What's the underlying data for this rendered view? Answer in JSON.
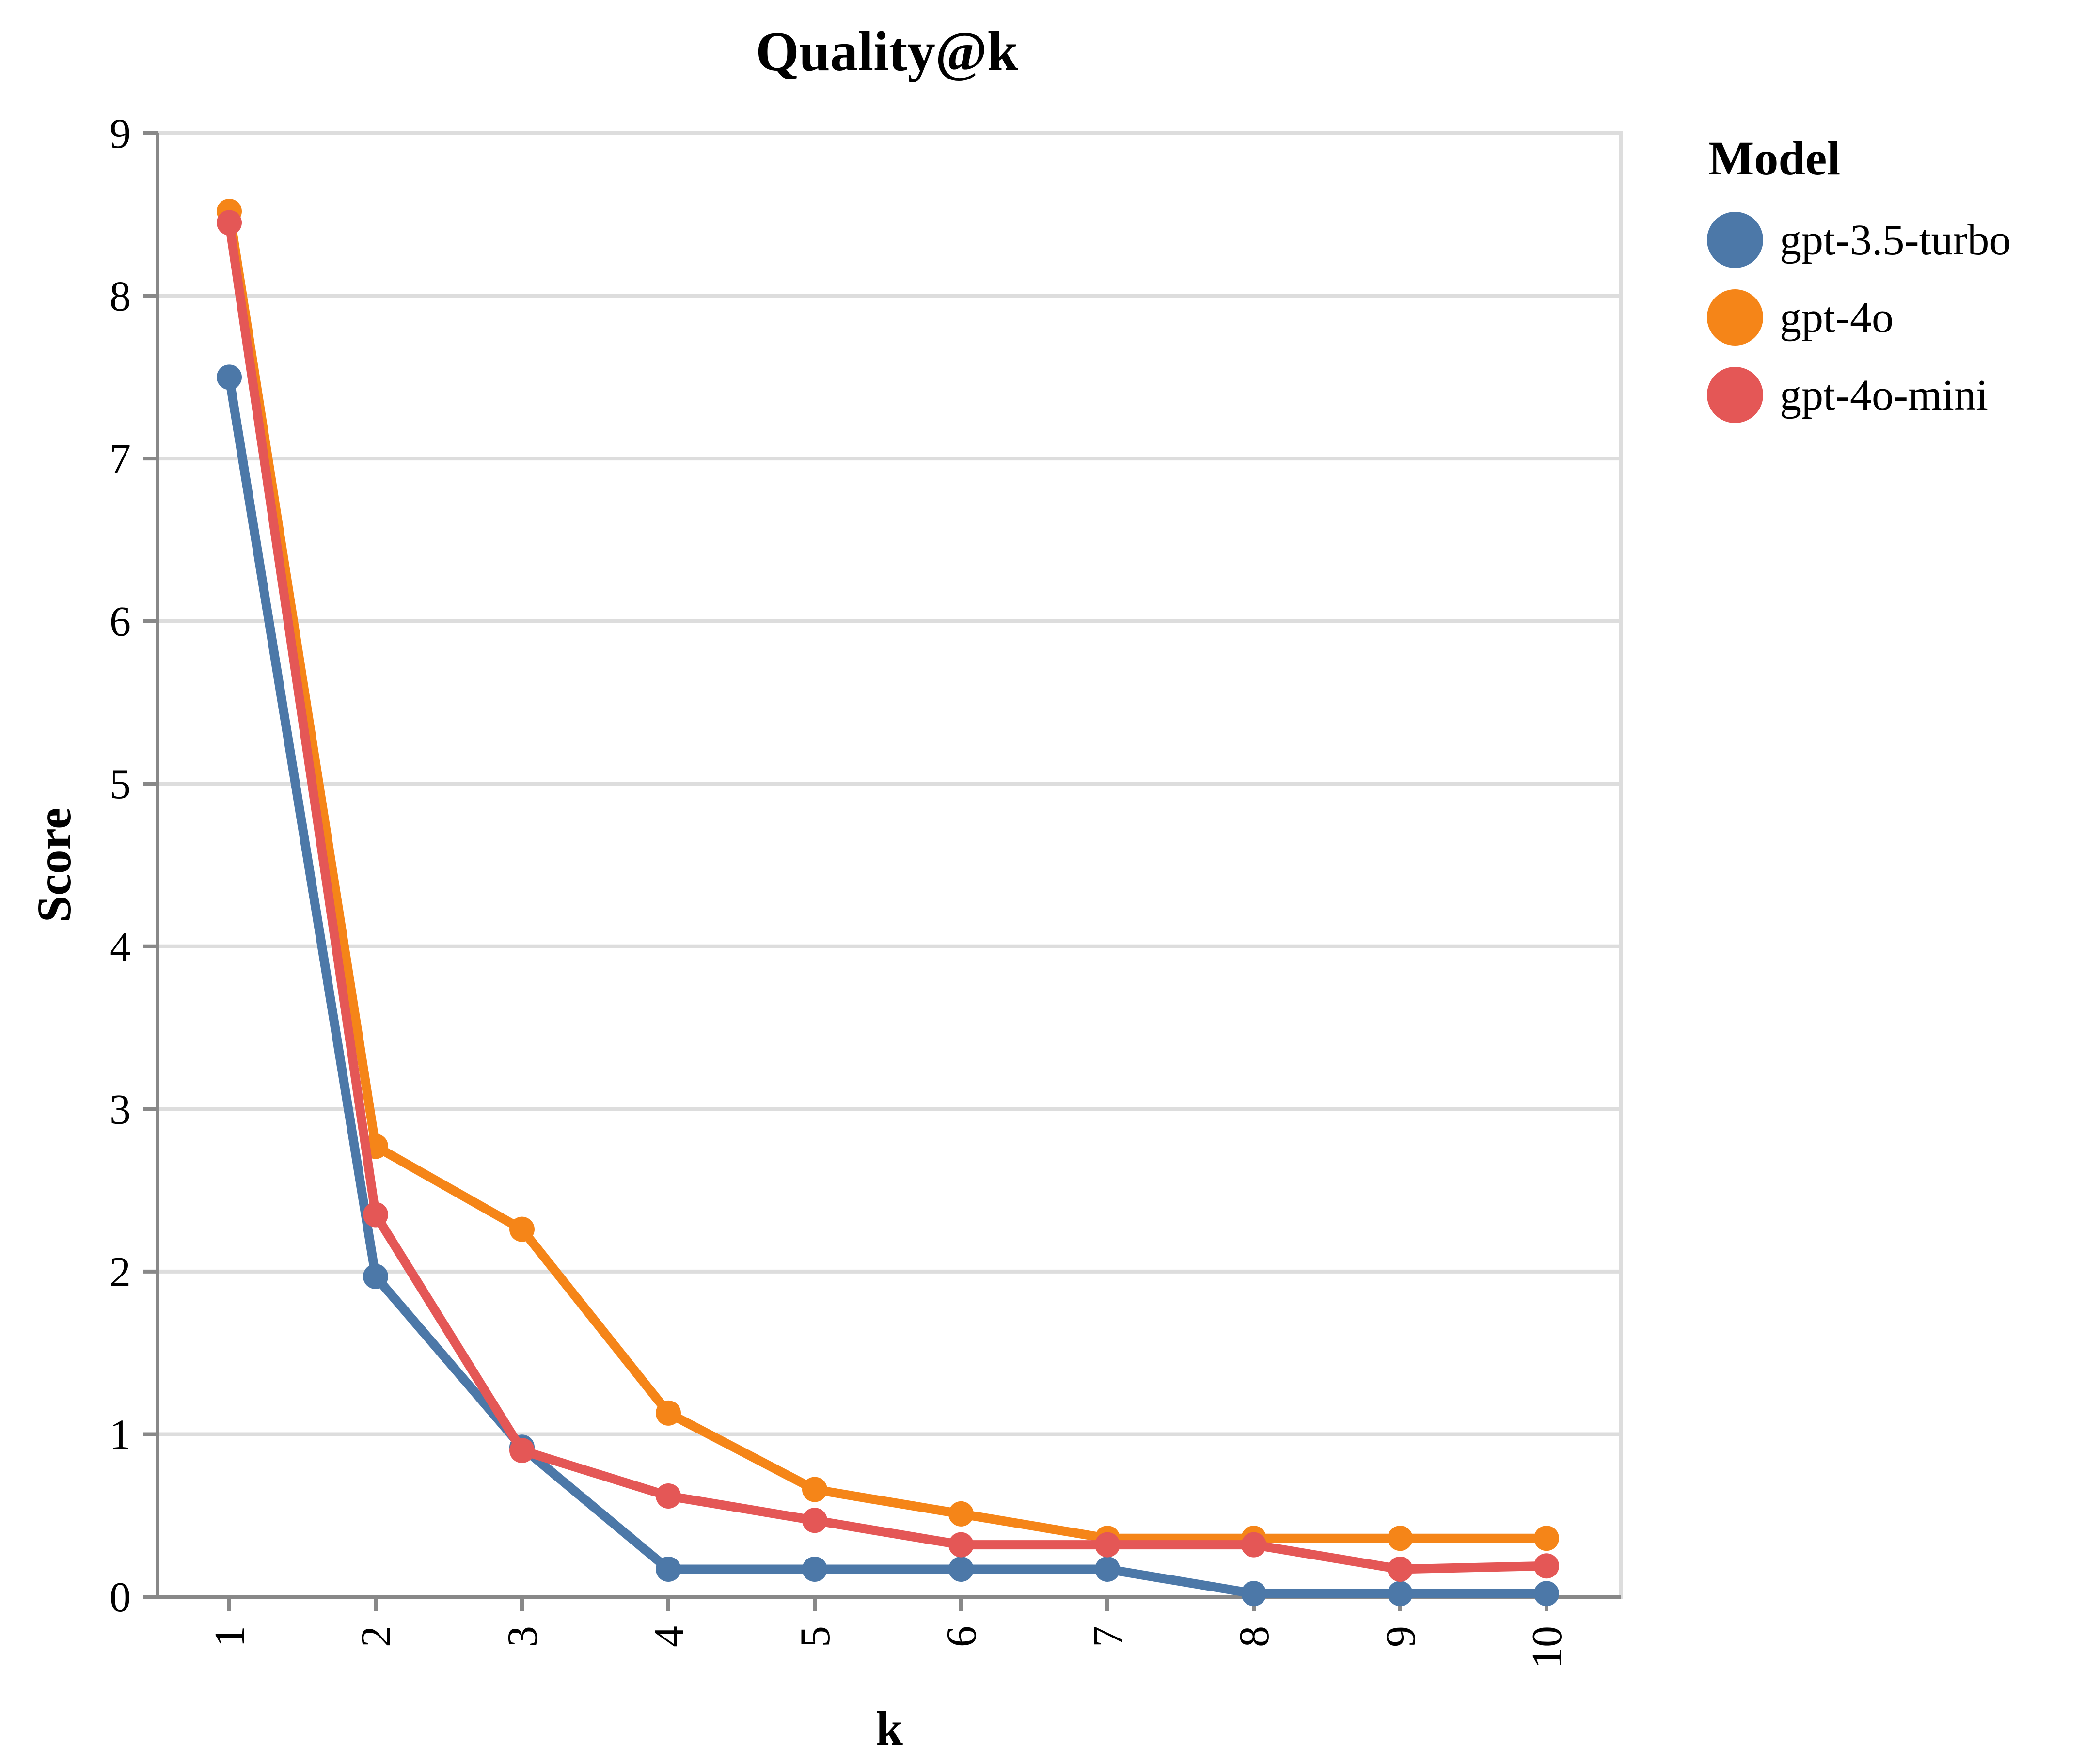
{
  "chart_data": {
    "type": "line",
    "title": "Quality@k",
    "xlabel": "k",
    "ylabel": "Score",
    "x": [
      1,
      2,
      3,
      4,
      5,
      6,
      7,
      8,
      9,
      10
    ],
    "x_tick_labels": [
      "1",
      "2",
      "3",
      "4",
      "5",
      "6",
      "7",
      "8",
      "9",
      "10"
    ],
    "ylim": [
      0,
      9
    ],
    "y_ticks": [
      0,
      1,
      2,
      3,
      4,
      5,
      6,
      7,
      8,
      9
    ],
    "y_tick_labels": [
      "0",
      "1",
      "2",
      "3",
      "4",
      "5",
      "6",
      "7",
      "8",
      "9"
    ],
    "grid": true,
    "legend": {
      "title": "Model",
      "position": "right"
    },
    "series": [
      {
        "name": "gpt-3.5-turbo",
        "color": "#4c78a8",
        "values": [
          7.5,
          1.97,
          0.92,
          0.17,
          0.17,
          0.17,
          0.17,
          0.02,
          0.02,
          0.02
        ]
      },
      {
        "name": "gpt-4o",
        "color": "#f58518",
        "values": [
          8.52,
          2.77,
          2.26,
          1.13,
          0.66,
          0.51,
          0.36,
          0.36,
          0.36,
          0.36
        ]
      },
      {
        "name": "gpt-4o-mini",
        "color": "#e45756",
        "values": [
          8.45,
          2.35,
          0.9,
          0.62,
          0.47,
          0.32,
          0.32,
          0.32,
          0.17,
          0.19
        ]
      }
    ]
  }
}
